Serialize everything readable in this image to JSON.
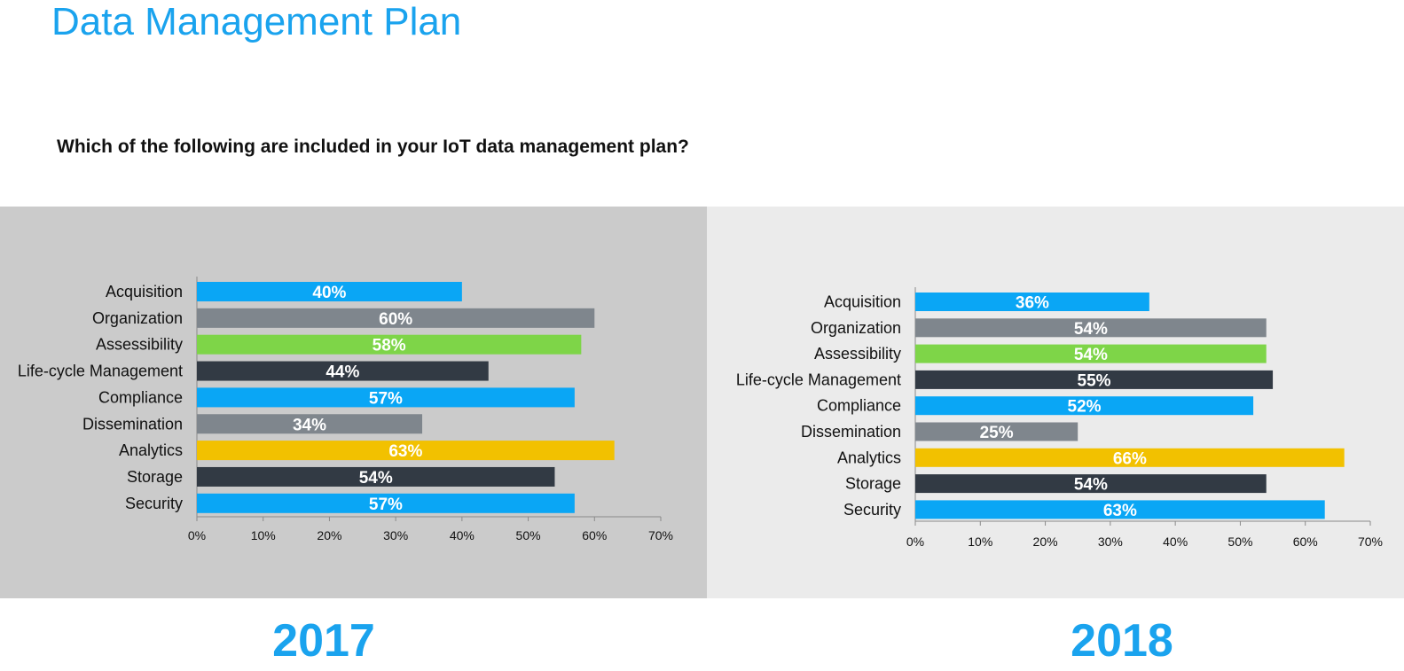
{
  "page": {
    "title": "Data Management Plan",
    "question": "Which of the following are included in your IoT data management plan?"
  },
  "colors": {
    "blue": "#0aa6f5",
    "gray": "#7f868d",
    "green": "#7ed548",
    "dark": "#323a44",
    "yellow": "#f2c100"
  },
  "chart_data": [
    {
      "type": "bar",
      "orientation": "horizontal",
      "year_label": "2017",
      "categories": [
        "Acquisition",
        "Organization",
        "Assessibility",
        "Life-cycle Management",
        "Compliance",
        "Dissemination",
        "Analytics",
        "Storage",
        "Security"
      ],
      "values": [
        40,
        60,
        58,
        44,
        57,
        34,
        63,
        54,
        57
      ],
      "data_labels": [
        "40%",
        "60%",
        "58%",
        "44%",
        "57%",
        "34%",
        "63%",
        "54%",
        "57%"
      ],
      "bar_colors": [
        "blue",
        "gray",
        "green",
        "dark",
        "blue",
        "gray",
        "yellow",
        "dark",
        "blue"
      ],
      "xlim": [
        0,
        70
      ],
      "xticks": [
        "0%",
        "10%",
        "20%",
        "30%",
        "40%",
        "50%",
        "60%",
        "70%"
      ],
      "background": "#cbcbcb"
    },
    {
      "type": "bar",
      "orientation": "horizontal",
      "year_label": "2018",
      "categories": [
        "Acquisition",
        "Organization",
        "Assessibility",
        "Life-cycle Management",
        "Compliance",
        "Dissemination",
        "Analytics",
        "Storage",
        "Security"
      ],
      "values": [
        36,
        54,
        54,
        55,
        52,
        25,
        66,
        54,
        63
      ],
      "data_labels": [
        "36%",
        "54%",
        "54%",
        "55%",
        "52%",
        "25%",
        "66%",
        "54%",
        "63%"
      ],
      "bar_colors": [
        "blue",
        "gray",
        "green",
        "dark",
        "blue",
        "gray",
        "yellow",
        "dark",
        "blue"
      ],
      "xlim": [
        0,
        70
      ],
      "xticks": [
        "0%",
        "10%",
        "20%",
        "30%",
        "40%",
        "50%",
        "60%",
        "70%"
      ],
      "background": "#ebebeb"
    }
  ]
}
